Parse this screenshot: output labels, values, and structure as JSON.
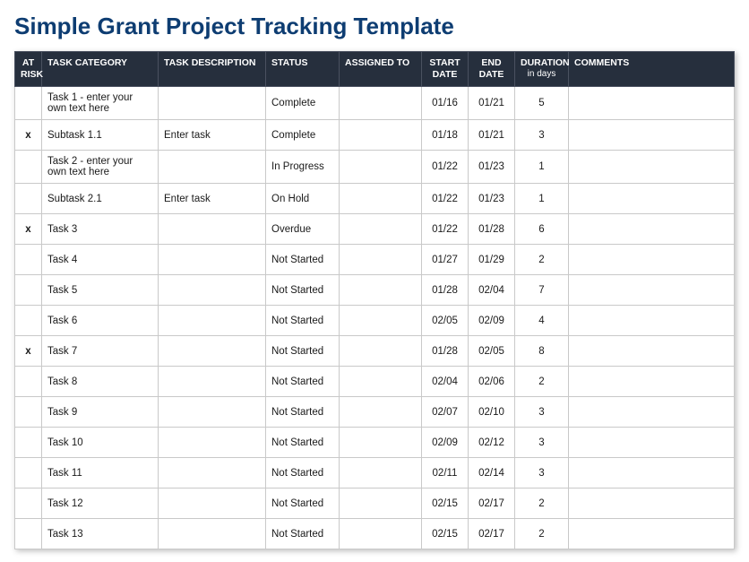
{
  "title": "Simple Grant Project Tracking Template",
  "headers": {
    "atRisk": "AT RISK",
    "category": "TASK CATEGORY",
    "description": "TASK DESCRIPTION",
    "status": "STATUS",
    "assigned": "ASSIGNED TO",
    "start": "START DATE",
    "end": "END DATE",
    "duration": "DURATION",
    "durationSub": "in days",
    "comments": "COMMENTS"
  },
  "statusColors": {
    "Complete": "#1fa02c",
    "In Progress": "#6fd04a",
    "On Hold": "#a9b0b8",
    "Overdue": "#f0a90e",
    "Not Started": "#f7e9bf"
  },
  "colors": {
    "headerBg": "#262f3d",
    "titleColor": "#0e3d72",
    "shadedCol1": "#e3e7ee",
    "shadedCol2": "#d2d8e3",
    "shadedCol3": "#eef1f5",
    "border": "#c9c9c9"
  },
  "rows": [
    {
      "atRisk": "",
      "category": "Task 1 - enter your own text here",
      "description": "",
      "status": "Complete",
      "assigned": "",
      "start": "01/16",
      "end": "01/21",
      "duration": "5",
      "comments": ""
    },
    {
      "atRisk": "x",
      "category": "Subtask 1.1",
      "description": "Enter task",
      "status": "Complete",
      "assigned": "",
      "start": "01/18",
      "end": "01/21",
      "duration": "3",
      "comments": ""
    },
    {
      "atRisk": "",
      "category": "Task 2 - enter your own text here",
      "description": "",
      "status": "In Progress",
      "assigned": "",
      "start": "01/22",
      "end": "01/23",
      "duration": "1",
      "comments": ""
    },
    {
      "atRisk": "",
      "category": "Subtask 2.1",
      "description": "Enter task",
      "status": "On Hold",
      "assigned": "",
      "start": "01/22",
      "end": "01/23",
      "duration": "1",
      "comments": ""
    },
    {
      "atRisk": "x",
      "category": "Task 3",
      "description": "",
      "status": "Overdue",
      "assigned": "",
      "start": "01/22",
      "end": "01/28",
      "duration": "6",
      "comments": ""
    },
    {
      "atRisk": "",
      "category": "Task 4",
      "description": "",
      "status": "Not Started",
      "assigned": "",
      "start": "01/27",
      "end": "01/29",
      "duration": "2",
      "comments": ""
    },
    {
      "atRisk": "",
      "category": "Task 5",
      "description": "",
      "status": "Not Started",
      "assigned": "",
      "start": "01/28",
      "end": "02/04",
      "duration": "7",
      "comments": ""
    },
    {
      "atRisk": "",
      "category": "Task 6",
      "description": "",
      "status": "Not Started",
      "assigned": "",
      "start": "02/05",
      "end": "02/09",
      "duration": "4",
      "comments": ""
    },
    {
      "atRisk": "x",
      "category": "Task 7",
      "description": "",
      "status": "Not Started",
      "assigned": "",
      "start": "01/28",
      "end": "02/05",
      "duration": "8",
      "comments": ""
    },
    {
      "atRisk": "",
      "category": "Task 8",
      "description": "",
      "status": "Not Started",
      "assigned": "",
      "start": "02/04",
      "end": "02/06",
      "duration": "2",
      "comments": ""
    },
    {
      "atRisk": "",
      "category": "Task 9",
      "description": "",
      "status": "Not Started",
      "assigned": "",
      "start": "02/07",
      "end": "02/10",
      "duration": "3",
      "comments": ""
    },
    {
      "atRisk": "",
      "category": "Task 10",
      "description": "",
      "status": "Not Started",
      "assigned": "",
      "start": "02/09",
      "end": "02/12",
      "duration": "3",
      "comments": ""
    },
    {
      "atRisk": "",
      "category": "Task 11",
      "description": "",
      "status": "Not Started",
      "assigned": "",
      "start": "02/11",
      "end": "02/14",
      "duration": "3",
      "comments": ""
    },
    {
      "atRisk": "",
      "category": "Task 12",
      "description": "",
      "status": "Not Started",
      "assigned": "",
      "start": "02/15",
      "end": "02/17",
      "duration": "2",
      "comments": ""
    },
    {
      "atRisk": "",
      "category": "Task 13",
      "description": "",
      "status": "Not Started",
      "assigned": "",
      "start": "02/15",
      "end": "02/17",
      "duration": "2",
      "comments": ""
    }
  ]
}
